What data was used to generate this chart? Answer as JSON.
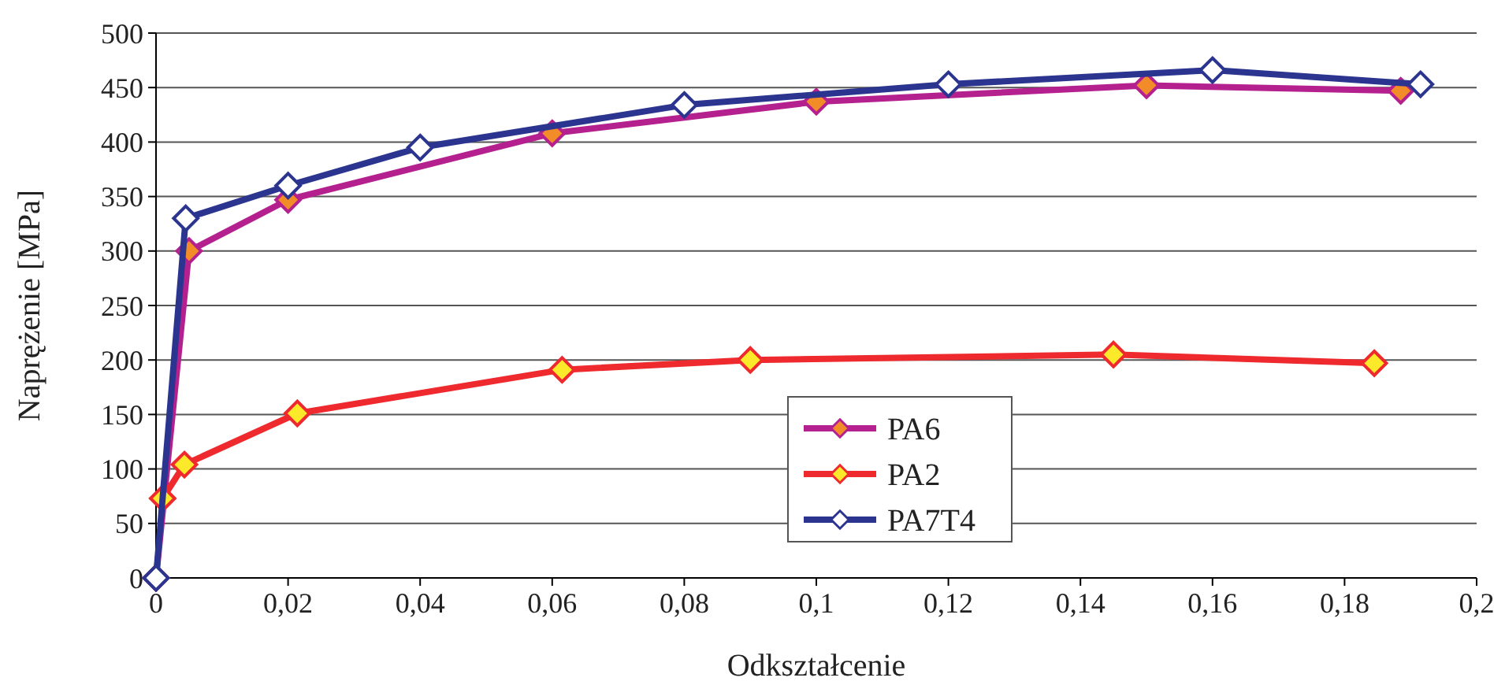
{
  "chart_data": {
    "type": "line",
    "xlabel": "Odkształcenie",
    "ylabel": "Naprężenie [MPa]",
    "xlim": [
      0,
      0.2
    ],
    "ylim": [
      0,
      500
    ],
    "xticks": [
      {
        "value": 0,
        "label": "0"
      },
      {
        "value": 0.02,
        "label": "0,02"
      },
      {
        "value": 0.04,
        "label": "0,04"
      },
      {
        "value": 0.06,
        "label": "0,06"
      },
      {
        "value": 0.08,
        "label": "0,08"
      },
      {
        "value": 0.1,
        "label": "0,1"
      },
      {
        "value": 0.12,
        "label": "0,12"
      },
      {
        "value": 0.14,
        "label": "0,14"
      },
      {
        "value": 0.16,
        "label": "0,16"
      },
      {
        "value": 0.18,
        "label": "0,18"
      },
      {
        "value": 0.2,
        "label": "0,2"
      }
    ],
    "yticks": [
      0,
      50,
      100,
      150,
      200,
      250,
      300,
      350,
      400,
      450,
      500
    ],
    "grid": "y",
    "legend": "bottom",
    "marker": "diamond",
    "line_style": "solid",
    "series": [
      {
        "name": "PA6",
        "color": "#b5208f",
        "x": [
          0,
          0.005,
          0.02,
          0.06,
          0.1,
          0.15,
          0.1885
        ],
        "values": [
          0,
          300,
          347,
          408,
          437,
          452,
          447
        ]
      },
      {
        "name": "PA2",
        "color": "#ee2a2e",
        "x": [
          0.001,
          0.0043,
          0.0214,
          0.0615,
          0.09,
          0.145,
          0.1845
        ],
        "values": [
          73,
          104,
          151,
          191,
          200,
          205,
          197
        ]
      },
      {
        "name": "PA7T4",
        "color": "#2b3590",
        "x": [
          0,
          0.0045,
          0.02,
          0.04,
          0.08,
          0.12,
          0.16,
          0.1915
        ],
        "values": [
          0,
          330,
          360,
          395,
          434,
          453,
          466,
          453
        ]
      }
    ]
  }
}
